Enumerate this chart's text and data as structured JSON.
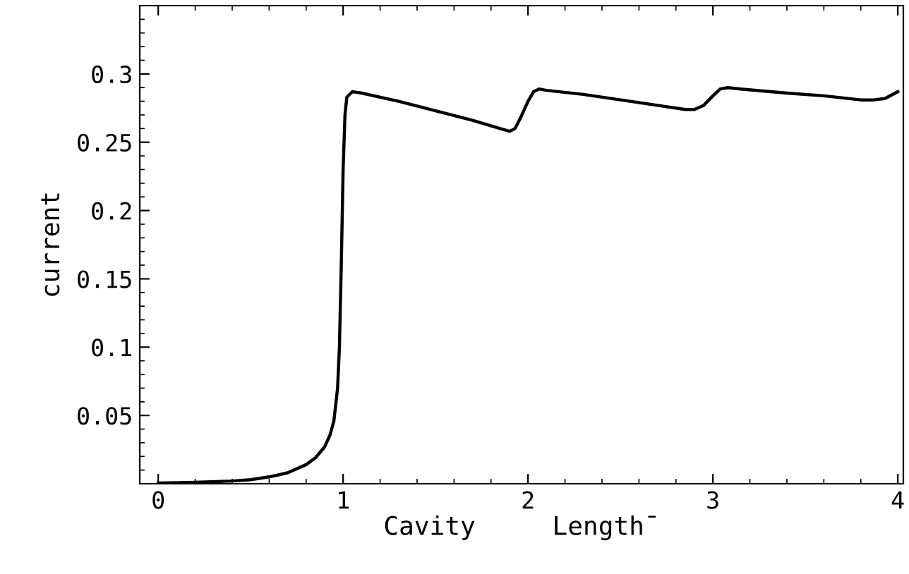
{
  "chart_data": {
    "type": "line",
    "xlabel": "Cavity     Length̄",
    "ylabel": "current",
    "x": [
      0,
      0.2,
      0.4,
      0.5,
      0.6,
      0.7,
      0.8,
      0.85,
      0.9,
      0.93,
      0.95,
      0.97,
      0.98,
      0.99,
      1.0,
      1.01,
      1.02,
      1.05,
      1.1,
      1.3,
      1.5,
      1.7,
      1.85,
      1.9,
      1.93,
      1.96,
      2.0,
      2.03,
      2.06,
      2.1,
      2.3,
      2.5,
      2.7,
      2.85,
      2.9,
      2.95,
      3.0,
      3.04,
      3.08,
      3.15,
      3.4,
      3.6,
      3.8,
      3.87,
      3.93,
      4.0
    ],
    "series": [
      {
        "color": "#000000",
        "values": [
          0.0005,
          0.001,
          0.002,
          0.003,
          0.005,
          0.008,
          0.014,
          0.019,
          0.027,
          0.036,
          0.046,
          0.07,
          0.1,
          0.16,
          0.23,
          0.27,
          0.283,
          0.287,
          0.286,
          0.28,
          0.273,
          0.266,
          0.26,
          0.258,
          0.26,
          0.268,
          0.28,
          0.287,
          0.289,
          0.288,
          0.285,
          0.281,
          0.277,
          0.274,
          0.274,
          0.277,
          0.284,
          0.289,
          0.29,
          0.289,
          0.286,
          0.284,
          0.281,
          0.281,
          0.282,
          0.287
        ]
      }
    ],
    "xlim": [
      -0.1,
      4.03
    ],
    "ylim": [
      0,
      0.35
    ],
    "xticks": [
      0,
      1,
      2,
      3,
      4
    ],
    "yticks": [
      0.05,
      0.1,
      0.15,
      0.2,
      0.25,
      0.3
    ],
    "grid": false,
    "legend": false,
    "marker": "none",
    "line_style": "solid"
  }
}
